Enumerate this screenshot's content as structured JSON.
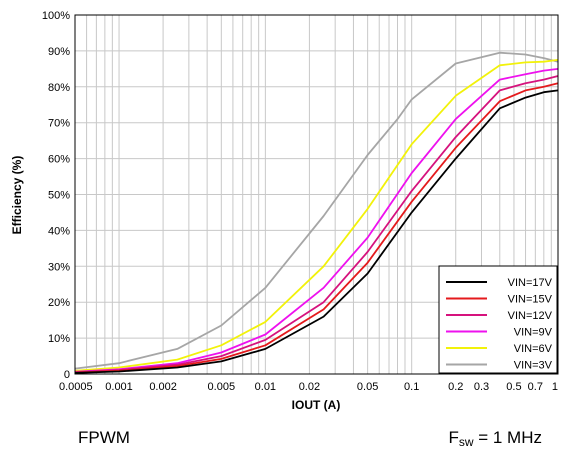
{
  "captions": {
    "left": "FPWM",
    "right_main": "F",
    "right_sub": "sw",
    "right_rest": " = 1 MHz"
  },
  "chart_data": {
    "type": "line",
    "xlabel": "IOUT (A)",
    "ylabel": "Efficiency (%)",
    "xscale": "log",
    "xlim": [
      0.0005,
      1
    ],
    "ylim": [
      0,
      100
    ],
    "grid": true,
    "legend_position": "bottom-right",
    "x_ticks": [
      0.0005,
      0.001,
      0.002,
      0.005,
      0.01,
      0.02,
      0.05,
      0.1,
      0.2,
      0.3,
      0.5,
      0.7,
      1
    ],
    "x_tick_labels": [
      "0.0005",
      "0.001",
      "0.002",
      "0.005",
      "0.01",
      "0.02",
      "0.05",
      "0.1",
      "0.2",
      "0.3",
      "0.5",
      "0.7",
      "1"
    ],
    "y_ticks": [
      0,
      10,
      20,
      30,
      40,
      50,
      60,
      70,
      80,
      90,
      100
    ],
    "y_tick_labels": [
      "0",
      "10%",
      "20%",
      "30%",
      "40%",
      "50%",
      "60%",
      "70%",
      "80%",
      "90%",
      "100%"
    ],
    "series": [
      {
        "name": "VIN=17V",
        "color": "#000000",
        "x": [
          0.0005,
          0.001,
          0.0025,
          0.005,
          0.01,
          0.025,
          0.05,
          0.1,
          0.2,
          0.4,
          0.6,
          0.8,
          1
        ],
        "y": [
          0.3,
          0.7,
          1.8,
          3.5,
          7,
          16,
          28,
          45,
          60,
          74,
          77,
          78.5,
          79
        ]
      },
      {
        "name": "VIN=15V",
        "color": "#e41a1c",
        "x": [
          0.0005,
          0.001,
          0.0025,
          0.005,
          0.01,
          0.025,
          0.05,
          0.1,
          0.2,
          0.4,
          0.6,
          0.8,
          1
        ],
        "y": [
          0.4,
          0.9,
          2.2,
          4.2,
          8,
          18,
          31,
          48,
          63,
          76,
          79,
          80,
          81
        ]
      },
      {
        "name": "VIN=12V",
        "color": "#d6127d",
        "x": [
          0.0005,
          0.001,
          0.0025,
          0.005,
          0.01,
          0.025,
          0.05,
          0.1,
          0.2,
          0.4,
          0.6,
          0.8,
          1
        ],
        "y": [
          0.5,
          1.1,
          2.6,
          5,
          9.5,
          20,
          34,
          51,
          66,
          79,
          81,
          82,
          83
        ]
      },
      {
        "name": "VIN=9V",
        "color": "#ee11ee",
        "x": [
          0.0005,
          0.001,
          0.0025,
          0.005,
          0.01,
          0.025,
          0.05,
          0.1,
          0.2,
          0.4,
          0.6,
          0.8,
          1
        ],
        "y": [
          0.6,
          1.3,
          3,
          6,
          11,
          24,
          38,
          56,
          71,
          82,
          83.5,
          84.5,
          85
        ]
      },
      {
        "name": "VIN=6V",
        "color": "#f2f20a",
        "x": [
          0.0005,
          0.001,
          0.0025,
          0.005,
          0.01,
          0.025,
          0.05,
          0.1,
          0.2,
          0.4,
          0.6,
          0.8,
          1
        ],
        "y": [
          0.9,
          1.8,
          4,
          8,
          14.5,
          30,
          46,
          64,
          77.5,
          86,
          86.8,
          87,
          87.5
        ]
      },
      {
        "name": "VIN=3V",
        "color": "#a6a6a6",
        "x": [
          0.0005,
          0.001,
          0.0025,
          0.005,
          0.01,
          0.025,
          0.05,
          0.08,
          0.1,
          0.2,
          0.4,
          0.6,
          0.8,
          1
        ],
        "y": [
          1.5,
          3,
          7,
          13.5,
          24,
          44,
          61,
          71,
          76.5,
          86.5,
          89.5,
          89,
          88,
          87
        ]
      }
    ]
  }
}
